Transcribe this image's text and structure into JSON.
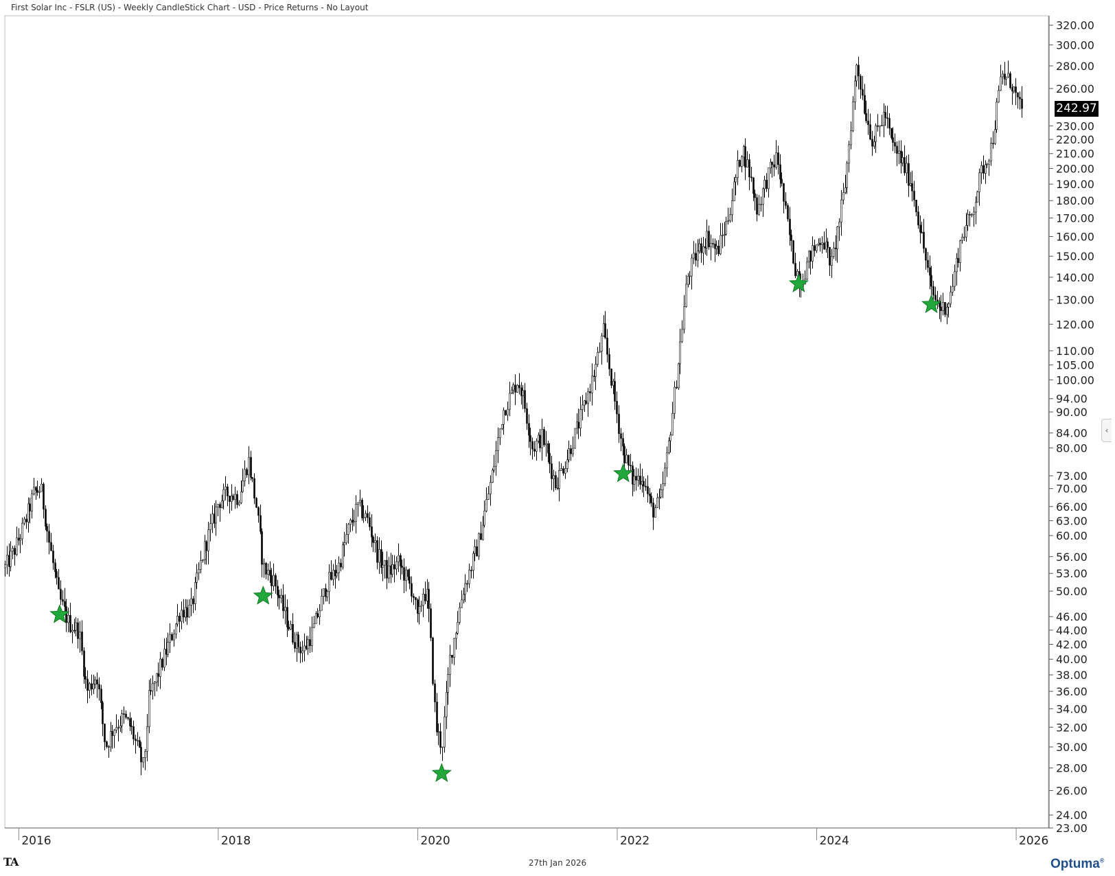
{
  "header": {
    "title": "First Solar Inc - FSLR (US) - Weekly CandleStick Chart - USD - Price Returns - No Layout"
  },
  "footer": {
    "date": "27th Jan 2026",
    "ta_logo": "TA",
    "brand": "Optuma",
    "brand_mark": "®"
  },
  "controls": {
    "collapse_icon": "chevron-left-icon",
    "collapse_glyph": "‹"
  },
  "colors": {
    "candle": "#000000",
    "star": "#22a83a",
    "axis": "#555555",
    "last_price_bg": "#000000"
  },
  "chart_data": {
    "type": "candlestick",
    "title": "First Solar Inc - FSLR (US) - Weekly CandleStick Chart - USD - Price Returns - No Layout",
    "y_scale": "log",
    "ylim": [
      23,
      330
    ],
    "xlim": [
      2015.86,
      2026.33
    ],
    "y_ticks": [
      23,
      24,
      26,
      28,
      30,
      32,
      34,
      36,
      38,
      40,
      42,
      44,
      46,
      50,
      53,
      56,
      60,
      63,
      66,
      70,
      73,
      80,
      84,
      90,
      94,
      100,
      105,
      110,
      120,
      130,
      140,
      150,
      160,
      170,
      180,
      190,
      200,
      210,
      220,
      230,
      260,
      280,
      300,
      320
    ],
    "y_tick_labels": [
      "23.00",
      "24.00",
      "26.00",
      "28.00",
      "30.00",
      "32.00",
      "34.00",
      "36.00",
      "38.00",
      "40.00",
      "42.00",
      "44.00",
      "46.00",
      "50.00",
      "53.00",
      "56.00",
      "60.00",
      "63.00",
      "66.00",
      "70.00",
      "73.00",
      "80.00",
      "84.00",
      "90.00",
      "94.00",
      "100.00",
      "105.00",
      "110.00",
      "120.00",
      "130.00",
      "140.00",
      "150.00",
      "160.00",
      "170.00",
      "180.00",
      "190.00",
      "200.00",
      "210.00",
      "220.00",
      "230.00",
      "260.00",
      "280.00",
      "300.00",
      "320.00"
    ],
    "x_ticks": [
      2016,
      2018,
      2020,
      2022,
      2024,
      2026
    ],
    "x_tick_labels": [
      "2016",
      "2018",
      "2020",
      "2022",
      "2024",
      "2026"
    ],
    "last_price": 242.97,
    "last_price_label": "242.97",
    "price_path": [
      [
        2015.86,
        54
      ],
      [
        2015.95,
        57
      ],
      [
        2016.05,
        62
      ],
      [
        2016.15,
        69
      ],
      [
        2016.22,
        70
      ],
      [
        2016.3,
        59
      ],
      [
        2016.4,
        49
      ],
      [
        2016.5,
        45
      ],
      [
        2016.6,
        44
      ],
      [
        2016.68,
        36
      ],
      [
        2016.78,
        38
      ],
      [
        2016.87,
        30
      ],
      [
        2016.95,
        32
      ],
      [
        2017.05,
        33
      ],
      [
        2017.12,
        32
      ],
      [
        2017.25,
        28
      ],
      [
        2017.3,
        35
      ],
      [
        2017.5,
        42
      ],
      [
        2017.62,
        47
      ],
      [
        2017.72,
        47
      ],
      [
        2017.85,
        57
      ],
      [
        2018.0,
        67
      ],
      [
        2018.1,
        69
      ],
      [
        2018.2,
        68
      ],
      [
        2018.3,
        77
      ],
      [
        2018.38,
        66
      ],
      [
        2018.45,
        54
      ],
      [
        2018.55,
        52
      ],
      [
        2018.65,
        47
      ],
      [
        2018.75,
        43
      ],
      [
        2018.85,
        41
      ],
      [
        2018.95,
        44
      ],
      [
        2019.08,
        51
      ],
      [
        2019.2,
        54
      ],
      [
        2019.3,
        61
      ],
      [
        2019.4,
        66
      ],
      [
        2019.5,
        63
      ],
      [
        2019.6,
        56
      ],
      [
        2019.7,
        53
      ],
      [
        2019.8,
        55
      ],
      [
        2019.95,
        50
      ],
      [
        2020.0,
        45
      ],
      [
        2020.05,
        50
      ],
      [
        2020.1,
        49
      ],
      [
        2020.18,
        32
      ],
      [
        2020.24,
        30
      ],
      [
        2020.32,
        40
      ],
      [
        2020.45,
        50
      ],
      [
        2020.6,
        58
      ],
      [
        2020.75,
        74
      ],
      [
        2020.85,
        90
      ],
      [
        2021.0,
        100
      ],
      [
        2021.05,
        95
      ],
      [
        2021.15,
        80
      ],
      [
        2021.25,
        83
      ],
      [
        2021.38,
        71
      ],
      [
        2021.5,
        78
      ],
      [
        2021.65,
        90
      ],
      [
        2021.78,
        104
      ],
      [
        2021.86,
        117
      ],
      [
        2021.95,
        98
      ],
      [
        2022.05,
        80
      ],
      [
        2022.15,
        72
      ],
      [
        2022.25,
        73
      ],
      [
        2022.35,
        65
      ],
      [
        2022.43,
        67
      ],
      [
        2022.5,
        78
      ],
      [
        2022.6,
        103
      ],
      [
        2022.7,
        140
      ],
      [
        2022.8,
        152
      ],
      [
        2022.9,
        160
      ],
      [
        2023.0,
        152
      ],
      [
        2023.1,
        168
      ],
      [
        2023.25,
        215
      ],
      [
        2023.32,
        198
      ],
      [
        2023.4,
        175
      ],
      [
        2023.5,
        194
      ],
      [
        2023.6,
        208
      ],
      [
        2023.7,
        168
      ],
      [
        2023.78,
        145
      ],
      [
        2023.84,
        138
      ],
      [
        2023.92,
        149
      ],
      [
        2024.05,
        160
      ],
      [
        2024.15,
        146
      ],
      [
        2024.28,
        188
      ],
      [
        2024.4,
        284
      ],
      [
        2024.48,
        243
      ],
      [
        2024.56,
        218
      ],
      [
        2024.68,
        240
      ],
      [
        2024.75,
        217
      ],
      [
        2024.85,
        205
      ],
      [
        2024.95,
        190
      ],
      [
        2025.05,
        160
      ],
      [
        2025.15,
        133
      ],
      [
        2025.25,
        126
      ],
      [
        2025.33,
        130
      ],
      [
        2025.45,
        160
      ],
      [
        2025.55,
        172
      ],
      [
        2025.65,
        198
      ],
      [
        2025.75,
        215
      ],
      [
        2025.85,
        272
      ],
      [
        2025.95,
        265
      ],
      [
        2026.05,
        240
      ],
      [
        2026.07,
        243
      ]
    ],
    "markers": [
      {
        "x": 2016.41,
        "y": 46.3,
        "symbol": "star"
      },
      {
        "x": 2018.45,
        "y": 49.2,
        "symbol": "star"
      },
      {
        "x": 2020.24,
        "y": 27.5,
        "symbol": "star"
      },
      {
        "x": 2022.06,
        "y": 73.5,
        "symbol": "star"
      },
      {
        "x": 2023.82,
        "y": 137.0,
        "symbol": "star"
      },
      {
        "x": 2025.15,
        "y": 128.0,
        "symbol": "star"
      }
    ]
  }
}
